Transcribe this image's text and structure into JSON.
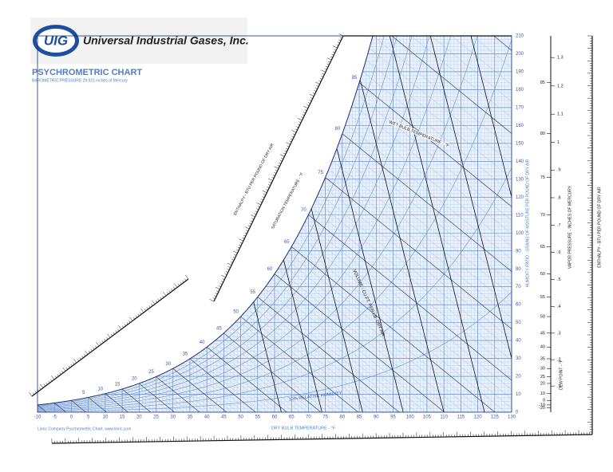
{
  "header": {
    "logo": "UIG",
    "company": "Universal Industrial Gases, Inc.",
    "title": "PSYCHROMETRIC CHART",
    "subtitle": "BAROMETRIC PRESSURE 29.921 inches of Mercury"
  },
  "footer": {
    "credit": "Linric Company Psychrometric Chart, www.linric.com"
  },
  "axes": {
    "dry_bulb": {
      "label": "DRY BULB TEMPERATURE - °F",
      "ticks": [
        -10,
        -5,
        0,
        5,
        10,
        15,
        20,
        25,
        30,
        35,
        40,
        45,
        50,
        55,
        60,
        65,
        70,
        75,
        80,
        85,
        90,
        95,
        100,
        105,
        110,
        115,
        120,
        125,
        130
      ]
    },
    "humidity_ratio": {
      "label": "HUMIDITY RATIO - GRAINS OF MOISTURE PER POUND OF DRY AIR",
      "ticks": [
        0,
        10,
        20,
        30,
        40,
        50,
        60,
        70,
        80,
        90,
        100,
        110,
        120,
        130,
        140,
        150,
        160,
        170,
        180,
        190,
        200,
        210
      ]
    },
    "saturation": {
      "label": "SATURATION TEMPERATURE - °F",
      "ticks": [
        5,
        10,
        15,
        20,
        25,
        30,
        35,
        40,
        45,
        50,
        55,
        60,
        65,
        70,
        75,
        80,
        85
      ]
    },
    "dew_point": {
      "label": "DEW POINT - °F",
      "ticks": [
        -20,
        -10,
        0,
        10,
        20,
        25,
        30,
        35,
        40,
        45,
        50,
        55,
        60,
        65,
        70,
        75,
        80,
        85
      ]
    },
    "vapor_pressure": {
      "label": "VAPOR PRESSURE - INCHES OF MERCURY",
      "ticks": [
        ".1",
        ".2",
        ".3",
        ".4",
        ".5",
        ".6",
        ".7",
        ".8",
        ".9",
        "1",
        "1.1",
        "1.2",
        "1.3"
      ]
    },
    "enthalpy": {
      "label": "ENTHALPY - BTU PER POUND OF DRY AIR"
    }
  },
  "annotations": {
    "wet_bulb": "WET BULB TEMPERATURE - °F",
    "relative_humidity": "10% RELATIVE HUMIDITY",
    "volume": "VOLUME - CU.FT. PER LB. DRY AIR",
    "enthalpy_left": "ENTHALPY - BTU PER POUND OF DRY AIR"
  }
}
